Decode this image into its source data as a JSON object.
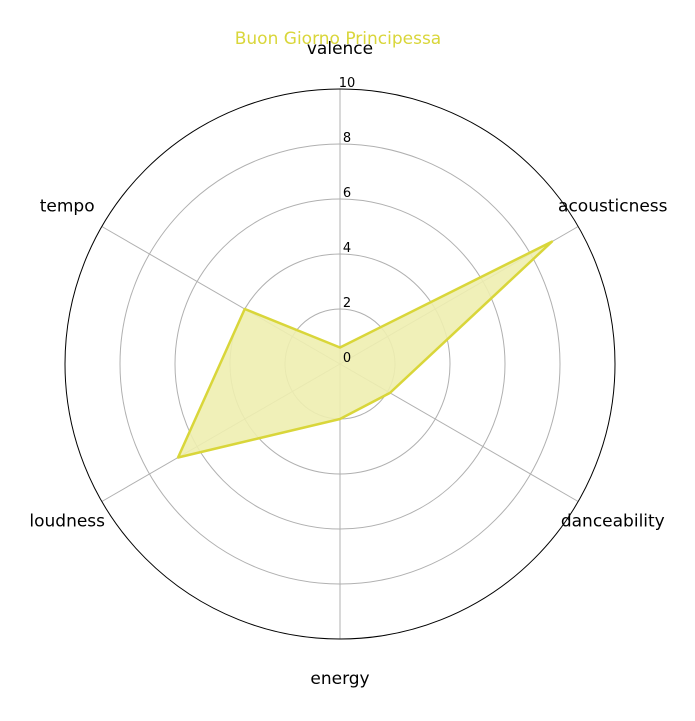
{
  "chart_data": {
    "type": "radar",
    "title": "Buon Giorno Principessa",
    "categories": [
      "valence",
      "acousticness",
      "danceability",
      "energy",
      "loudness",
      "tempo"
    ],
    "series": [
      {
        "name": "",
        "values": [
          0.6,
          8.9,
          2.1,
          2.0,
          6.8,
          4.0
        ]
      }
    ],
    "rlim": [
      0,
      10
    ],
    "rticks": [
      "0",
      "2",
      "4",
      "6",
      "8",
      "10"
    ],
    "grid": true,
    "colors": {
      "series": "#d9d63a",
      "fill": "#eeeeb0",
      "grid": "#b0b0b0",
      "frame": "#000000",
      "title": "#d9d63a"
    }
  }
}
